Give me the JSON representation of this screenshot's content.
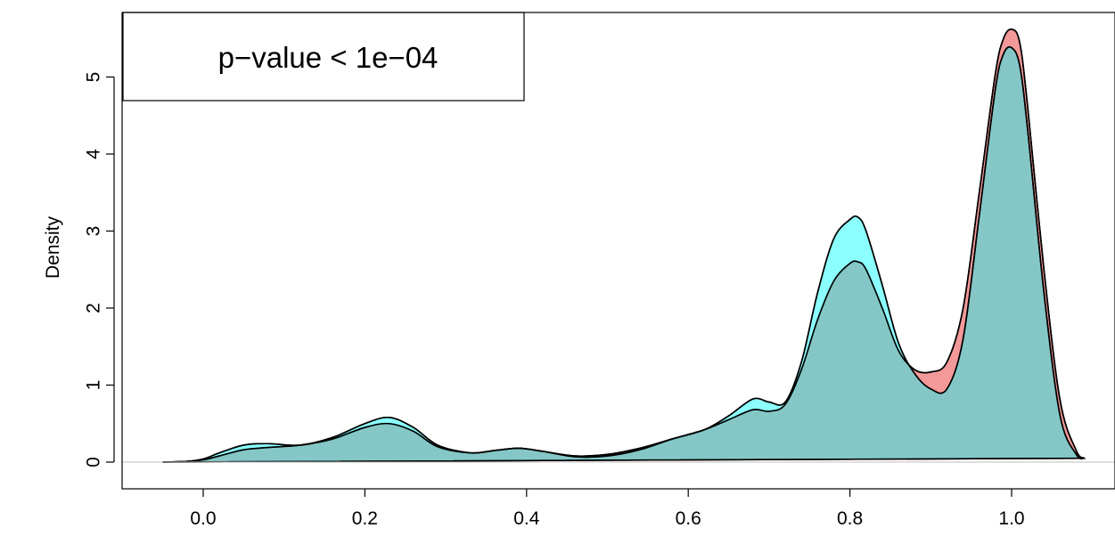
{
  "chart_data": {
    "type": "area",
    "title": "",
    "xlabel": "",
    "ylabel": "Density",
    "xlim": [
      -0.06,
      1.12
    ],
    "ylim": [
      -0.2,
      5.85
    ],
    "x_ticks": [
      "0.0",
      "0.2",
      "0.4",
      "0.6",
      "0.8",
      "1.0"
    ],
    "y_ticks": [
      "0",
      "1",
      "2",
      "3",
      "4",
      "5"
    ],
    "grid": false,
    "legend_text": "p−value < 1e−04",
    "legend_position": "top-left",
    "series": [
      {
        "color": "#F08080",
        "opacity": 0.8,
        "x": [
          -0.05,
          -0.02,
          0.0,
          0.02,
          0.05,
          0.08,
          0.12,
          0.16,
          0.2,
          0.23,
          0.26,
          0.29,
          0.33,
          0.36,
          0.39,
          0.42,
          0.46,
          0.5,
          0.54,
          0.58,
          0.62,
          0.65,
          0.68,
          0.7,
          0.72,
          0.74,
          0.76,
          0.78,
          0.8,
          0.81,
          0.82,
          0.84,
          0.86,
          0.88,
          0.9,
          0.92,
          0.94,
          0.96,
          0.98,
          0.99,
          1.0,
          1.01,
          1.02,
          1.04,
          1.06,
          1.08,
          1.09
        ],
        "y": [
          0,
          0.01,
          0.03,
          0.08,
          0.16,
          0.19,
          0.22,
          0.3,
          0.45,
          0.5,
          0.4,
          0.2,
          0.12,
          0.15,
          0.18,
          0.14,
          0.08,
          0.1,
          0.18,
          0.3,
          0.42,
          0.55,
          0.68,
          0.66,
          0.75,
          1.2,
          1.85,
          2.35,
          2.58,
          2.6,
          2.5,
          2.0,
          1.45,
          1.2,
          1.17,
          1.3,
          2.0,
          3.5,
          5.05,
          5.5,
          5.62,
          5.45,
          4.6,
          2.5,
          0.8,
          0.15,
          0.05
        ]
      },
      {
        "color": "#00FFFF",
        "opacity": 0.45,
        "x": [
          -0.05,
          -0.02,
          0.0,
          0.02,
          0.05,
          0.08,
          0.12,
          0.16,
          0.2,
          0.23,
          0.26,
          0.29,
          0.33,
          0.36,
          0.39,
          0.42,
          0.46,
          0.5,
          0.54,
          0.58,
          0.62,
          0.65,
          0.68,
          0.7,
          0.72,
          0.74,
          0.76,
          0.78,
          0.8,
          0.81,
          0.82,
          0.84,
          0.86,
          0.88,
          0.9,
          0.92,
          0.94,
          0.96,
          0.98,
          0.99,
          1.0,
          1.01,
          1.02,
          1.04,
          1.06,
          1.08,
          1.09
        ],
        "y": [
          0,
          0.01,
          0.04,
          0.12,
          0.22,
          0.24,
          0.22,
          0.32,
          0.5,
          0.58,
          0.45,
          0.22,
          0.12,
          0.15,
          0.18,
          0.14,
          0.07,
          0.08,
          0.16,
          0.3,
          0.42,
          0.6,
          0.82,
          0.78,
          0.78,
          1.3,
          2.2,
          2.9,
          3.15,
          3.18,
          3.0,
          2.3,
          1.55,
          1.15,
          0.95,
          0.95,
          1.6,
          3.2,
          4.85,
          5.3,
          5.38,
          5.15,
          4.3,
          2.2,
          0.6,
          0.1,
          0.05
        ]
      }
    ]
  }
}
